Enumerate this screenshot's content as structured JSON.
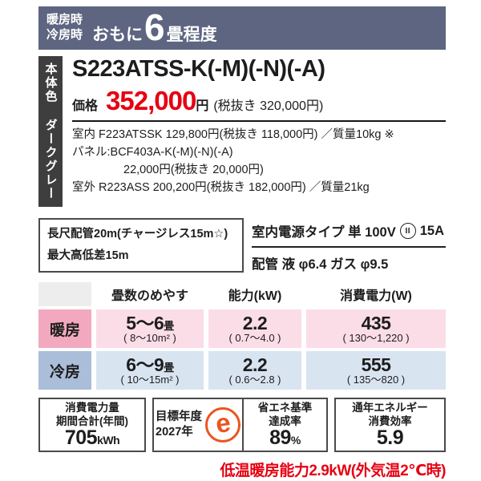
{
  "banner": {
    "mode_line1": "暖房時",
    "mode_line2": "冷房時",
    "prefix": "おもに",
    "size": "6",
    "suffix": "畳程度"
  },
  "body_color_bar": {
    "text": "本体色 ダークグレー"
  },
  "product": {
    "model": "S223ATSS-K(-M)(-N)(-A)",
    "price_label": "価格",
    "price": "352,000",
    "price_unit": "円",
    "price_tax_note": "(税抜き 320,000円)",
    "lines": [
      "室内 F223ATSSK 129,800円(税抜き 118,000円) ／質量10kg ※",
      "パネル:BCF403A-K(-M)(-N)(-A)",
      "22,000円(税抜き 20,000円)",
      "室外 R223ASS 200,200円(税抜き 182,000円) ／質量21kg"
    ]
  },
  "piping_box": {
    "line1": "長尺配管20m(チャージレス15m☆)",
    "line2": "最大高低差15m"
  },
  "power": {
    "line1_prefix": "室内電源タイプ 単 100V",
    "plug_symbol": "II",
    "line1_suffix": "15A",
    "line2": "配管 液 φ6.4 ガス φ9.5"
  },
  "table": {
    "headers": {
      "col1": "畳数のめやす",
      "col2": "能力(kW)",
      "col3": "消費電力(W)"
    },
    "rows": [
      {
        "label": "暖房",
        "tatami_main": "5〜6",
        "tatami_unit": "畳",
        "tatami_sub": "( 8〜10m² )",
        "capacity_main": "2.2",
        "capacity_sub": "( 0.7〜4.0 )",
        "power_main": "435",
        "power_sub": "( 130〜1,220 )"
      },
      {
        "label": "冷房",
        "tatami_main": "6〜9",
        "tatami_unit": "畳",
        "tatami_sub": "( 10〜15m² )",
        "capacity_main": "2.2",
        "capacity_sub": "( 0.6〜2.8 )",
        "power_main": "555",
        "power_sub": "( 135〜820 )"
      }
    ]
  },
  "energy": {
    "annual": {
      "label1": "消費電力量",
      "label2": "期間合計(年間)",
      "value": "705",
      "unit": "kWh"
    },
    "target": {
      "label1": "目標年度",
      "label2": "2027年",
      "logo_letter": "e"
    },
    "achievement": {
      "label1": "省エネ基準",
      "label2": "達成率",
      "value": "89",
      "unit": "%"
    },
    "apf": {
      "label1": "通年エネルギー",
      "label2": "消費効率",
      "value": "5.9"
    }
  },
  "footnote": {
    "text": "低温暖房能力2.9kW(外気温2℃時)"
  },
  "colors": {
    "banner_bg": "#5d6581",
    "body_color_bar_bg": "#3e3e3e",
    "price_red": "#e60012",
    "heating_label_bg": "#f2a9bf",
    "heating_cell_bg": "#fbdde8",
    "cooling_label_bg": "#aabdd9",
    "cooling_cell_bg": "#d9e4f1",
    "emark_orange": "#ea5520",
    "footnote_red": "#e60012"
  }
}
